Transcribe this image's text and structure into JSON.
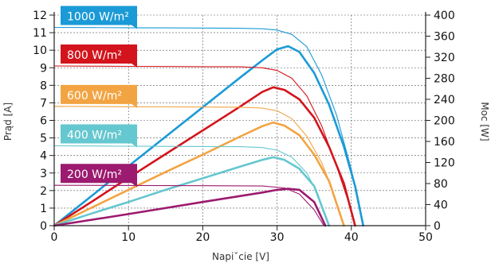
{
  "chart_data": {
    "type": "line",
    "xlabel": "Napiˇcie [V]",
    "ylabel_left": "Prąd [A]",
    "ylabel_right": "Moc [W]",
    "xlim": [
      0,
      50
    ],
    "ylim_left": [
      0,
      12
    ],
    "ylim_right": [
      0,
      400
    ],
    "xticks": [
      "0",
      "10",
      "20",
      "30",
      "40",
      "50"
    ],
    "yticks_left": [
      "0",
      "1",
      "2",
      "3",
      "4",
      "5",
      "6",
      "7",
      "8",
      "9",
      "10",
      "11",
      "12"
    ],
    "yticks_right": [
      "0",
      "40",
      "80",
      "120",
      "160",
      "200",
      "240",
      "280",
      "320",
      "360",
      "400"
    ],
    "grid": true,
    "series": [
      {
        "name": "1000 W/m²",
        "color": "#1a9ad6",
        "current": {
          "x": [
            0,
            5,
            10,
            15,
            20,
            25,
            28,
            30,
            32,
            34,
            36,
            38,
            40,
            41,
            41.6
          ],
          "y": [
            11.3,
            11.29,
            11.28,
            11.27,
            11.26,
            11.25,
            11.22,
            11.15,
            10.9,
            10.2,
            8.6,
            6.3,
            3.2,
            1.4,
            0
          ]
        },
        "power": {
          "x": [
            0,
            5,
            10,
            15,
            20,
            25,
            28,
            30,
            31.5,
            33,
            35,
            37,
            39,
            40.5,
            41.6
          ],
          "y": [
            0,
            56,
            113,
            169,
            225,
            281,
            314,
            335,
            341,
            330,
            290,
            230,
            150,
            75,
            0
          ]
        }
      },
      {
        "name": "800 W/m²",
        "color": "#d3141c",
        "current": {
          "x": [
            0,
            5,
            10,
            15,
            20,
            25,
            28,
            30,
            32,
            34,
            36,
            38,
            39.5,
            40.5
          ],
          "y": [
            9.1,
            9.09,
            9.08,
            9.07,
            9.06,
            9.05,
            9.0,
            8.85,
            8.4,
            7.4,
            5.7,
            3.4,
            1.5,
            0
          ]
        },
        "power": {
          "x": [
            0,
            5,
            10,
            15,
            20,
            25,
            28,
            29.5,
            31,
            33,
            35,
            37,
            39,
            40.5
          ],
          "y": [
            0,
            45,
            91,
            136,
            181,
            226,
            254,
            263,
            258,
            240,
            205,
            150,
            80,
            0
          ]
        }
      },
      {
        "name": "600 W/m²",
        "color": "#f2a442",
        "current": {
          "x": [
            0,
            5,
            10,
            15,
            20,
            25,
            28,
            30,
            32,
            34,
            36,
            37.5,
            39
          ],
          "y": [
            6.8,
            6.79,
            6.78,
            6.77,
            6.76,
            6.75,
            6.7,
            6.55,
            6.1,
            5.1,
            3.6,
            2.0,
            0
          ]
        },
        "power": {
          "x": [
            0,
            5,
            10,
            15,
            20,
            25,
            28,
            29.5,
            31,
            33,
            35,
            37,
            39
          ],
          "y": [
            0,
            34,
            68,
            102,
            135,
            169,
            189,
            196,
            190,
            172,
            135,
            85,
            0
          ]
        }
      },
      {
        "name": "400 W/m²",
        "color": "#65c7cf",
        "current": {
          "x": [
            0,
            5,
            10,
            15,
            20,
            25,
            28,
            30,
            32,
            34,
            35.5,
            37
          ],
          "y": [
            4.55,
            4.54,
            4.53,
            4.52,
            4.51,
            4.5,
            4.45,
            4.3,
            3.9,
            3.0,
            1.8,
            0
          ]
        },
        "power": {
          "x": [
            0,
            5,
            10,
            15,
            20,
            25,
            28,
            29.5,
            31,
            33,
            35,
            37
          ],
          "y": [
            0,
            23,
            45,
            68,
            90,
            112,
            125,
            130,
            125,
            108,
            75,
            0
          ]
        }
      },
      {
        "name": "200 W/m²",
        "color": "#9c1a6f",
        "current": {
          "x": [
            0,
            10,
            20,
            28,
            31,
            33,
            35,
            36.3
          ],
          "y": [
            2.3,
            2.29,
            2.28,
            2.26,
            2.15,
            1.8,
            0.9,
            0
          ]
        },
        "power": {
          "x": [
            0,
            10,
            20,
            28,
            30,
            31.5,
            33,
            35,
            36.5
          ],
          "y": [
            0,
            22,
            45,
            63,
            68,
            70,
            68,
            45,
            0
          ]
        }
      }
    ]
  }
}
